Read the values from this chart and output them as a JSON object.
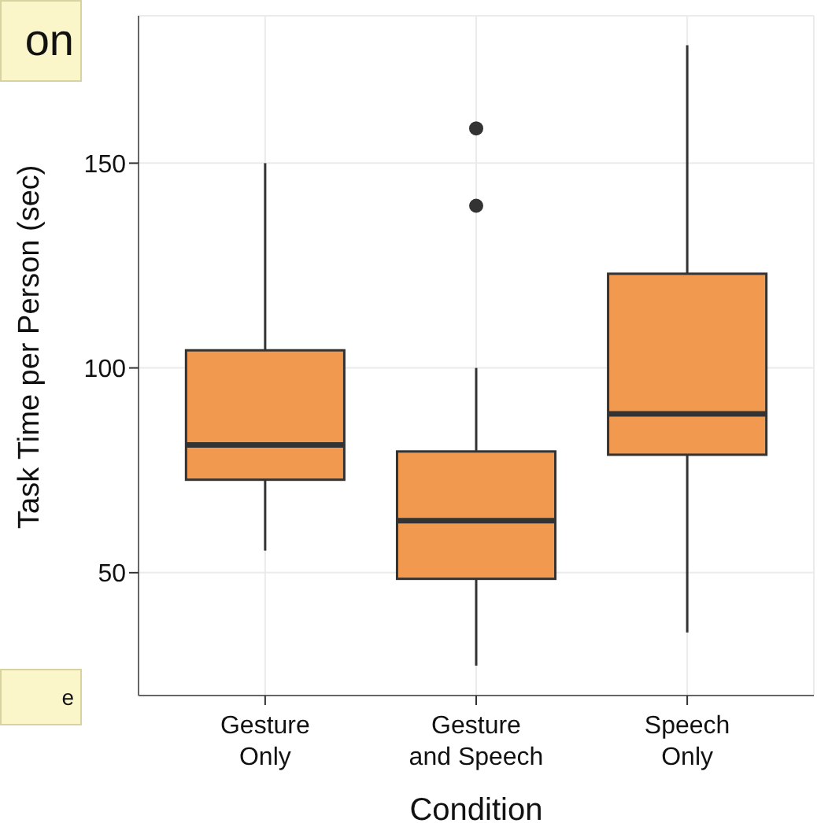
{
  "chart_data": {
    "type": "box",
    "ylabel": "Task Time per Person (sec)",
    "xlabel": "Condition",
    "categories": [
      "Gesture Only",
      "Gesture and Speech",
      "Speech Only"
    ],
    "series": [
      {
        "color": "#f0994f",
        "boxes": [
          {
            "low": 55.4,
            "q1": 72.7,
            "median": 81.2,
            "q3": 104.3,
            "high": 150
          },
          {
            "low": 27.3,
            "q1": 48.5,
            "median": 62.7,
            "q3": 79.6,
            "high": 100,
            "outliers": [
              139.6,
              158.5
            ]
          },
          {
            "low": 35.4,
            "q1": 78.8,
            "median": 88.8,
            "q3": 123,
            "high": 178.8
          }
        ]
      }
    ],
    "ylim": [
      20,
      186
    ],
    "yticks": [
      50,
      100,
      150
    ],
    "grid": true,
    "annotations": [
      "on",
      "e"
    ]
  }
}
